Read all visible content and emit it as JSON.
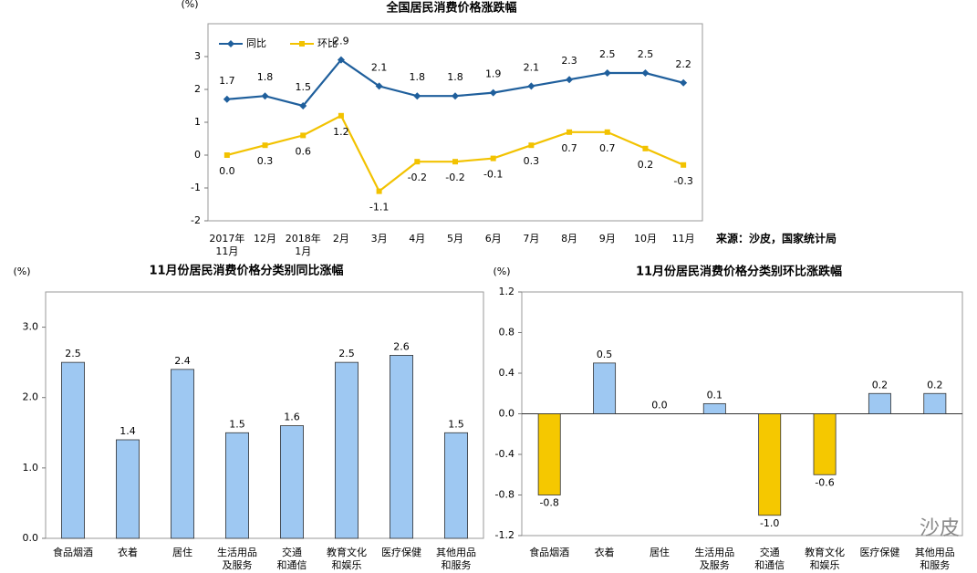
{
  "chart_data": [
    {
      "type": "line",
      "title": "全国居民消费价格涨跌幅",
      "y_label": "(%)",
      "categories": [
        "2017年\n11月",
        "12月",
        "2018年\n1月",
        "2月",
        "3月",
        "4月",
        "5月",
        "6月",
        "7月",
        "8月",
        "9月",
        "10月",
        "11月"
      ],
      "series": [
        {
          "name": "同比",
          "color": "#1f5f9c",
          "marker": "diamond",
          "values": [
            1.7,
            1.8,
            1.5,
            2.9,
            2.1,
            1.8,
            1.8,
            1.9,
            2.1,
            2.3,
            2.5,
            2.5,
            2.2
          ],
          "value_labels": [
            "1.7",
            "1.8",
            "1.5",
            "2.9",
            "2.1",
            "1.8",
            "1.8",
            "1.9",
            "2.1",
            "2.3",
            "2.5",
            "2.5",
            "2.2"
          ]
        },
        {
          "name": "环比",
          "color": "#f2c200",
          "marker": "square",
          "values": [
            0.0,
            0.3,
            0.6,
            1.2,
            -1.1,
            -0.2,
            -0.2,
            -0.1,
            0.3,
            0.7,
            0.7,
            0.2,
            -0.3
          ],
          "value_labels": [
            "0.0",
            "0.3",
            "0.6",
            "1.2",
            "-1.1",
            "-0.2",
            "-0.2",
            "-0.1",
            "0.3",
            "0.7",
            "0.7",
            "0.2",
            "-0.3"
          ]
        }
      ],
      "ylim": [
        -2,
        4
      ],
      "yticks": [
        -2,
        -1,
        0,
        1,
        2,
        3
      ],
      "legend": "top-left",
      "source": "来源：沙皮，国家统计局"
    },
    {
      "type": "bar",
      "title": "11月份居民消费价格分类别同比涨幅",
      "y_label": "(%)",
      "categories": [
        "食品烟酒",
        "衣着",
        "居住",
        "生活用品\n及服务",
        "交通\n和通信",
        "教育文化\n和娱乐",
        "医疗保健",
        "其他用品\n和服务"
      ],
      "values": [
        2.5,
        1.4,
        2.4,
        1.5,
        1.6,
        2.5,
        2.6,
        1.5
      ],
      "color": "#9ec8f2",
      "ylim": [
        0,
        3.5
      ],
      "yticks": [
        {
          "value": 0,
          "label": "0.0"
        },
        {
          "value": 1,
          "label": "1.0"
        },
        {
          "value": 2,
          "label": "2.0"
        },
        {
          "value": 3,
          "label": "3.0"
        }
      ]
    },
    {
      "type": "bar",
      "title": "11月份居民消费价格分类别环比涨跌幅",
      "y_label": "(%)",
      "categories": [
        "食品烟酒",
        "衣着",
        "居住",
        "生活用品\n及服务",
        "交通\n和通信",
        "教育文化\n和娱乐",
        "医疗保健",
        "其他用品\n和服务"
      ],
      "values": [
        -0.8,
        0.5,
        0.0,
        0.1,
        -1.0,
        -0.6,
        0.2,
        0.2
      ],
      "value_labels": [
        "-0.8",
        "0.5",
        "0.0",
        "0.1",
        "-1.0",
        "-0.6",
        "0.2",
        "0.2"
      ],
      "color": "#9ec8f2",
      "negative_color": "#f5c800",
      "ylim": [
        -1.2,
        1.2
      ],
      "yticks": [
        -1.2,
        -0.8,
        -0.4,
        {
          "value": 0,
          "label": "0.0"
        },
        0.4,
        0.8,
        1.2
      ],
      "watermark": "沙皮"
    }
  ]
}
